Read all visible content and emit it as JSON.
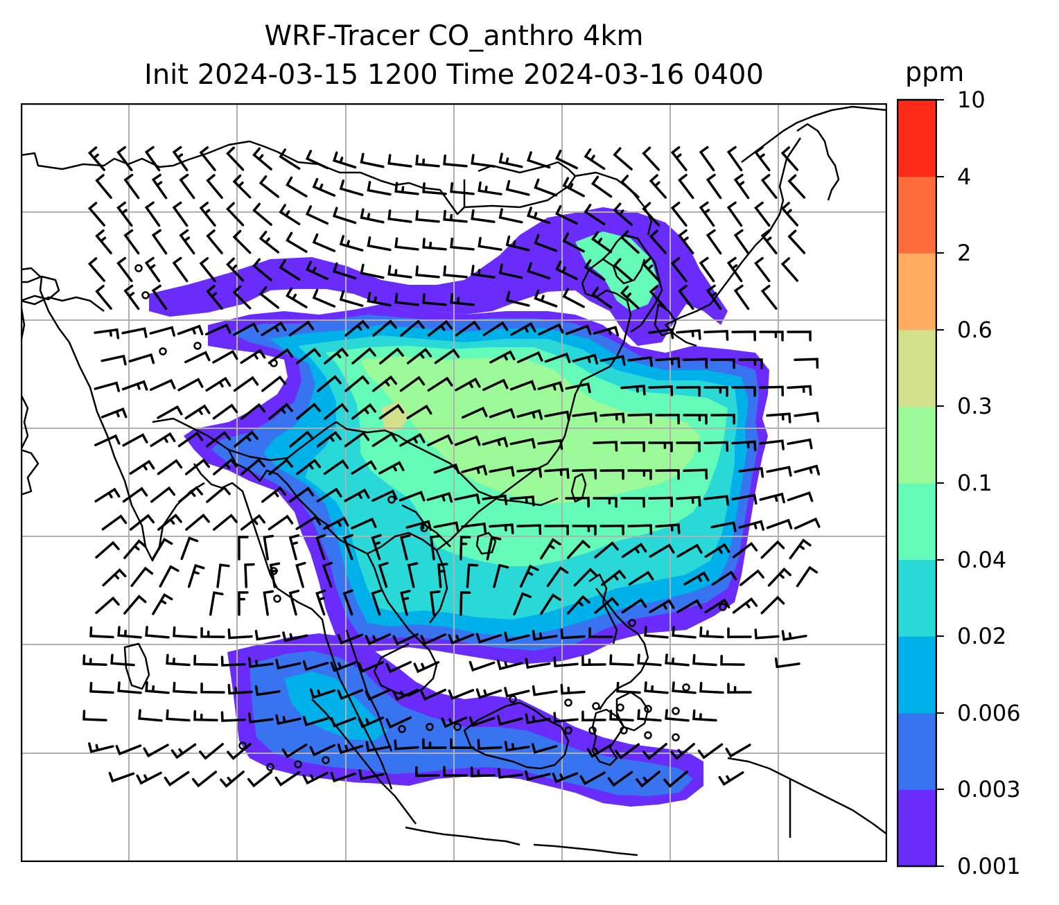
{
  "title": {
    "line1": "WRF-Tracer CO_anthro 4km",
    "line2": "Init 2024-03-15 1200 Time 2024-03-16 0400"
  },
  "colorbar": {
    "unit": "ppm",
    "ticks": [
      "0.001",
      "0.003",
      "0.006",
      "0.02",
      "0.04",
      "0.1",
      "0.3",
      "0.6",
      "2",
      "4",
      "10"
    ],
    "colors": [
      "#6a2cfa",
      "#3873f0",
      "#00b0e8",
      "#2ad8d8",
      "#64fab8",
      "#9cfa98",
      "#d2e08c",
      "#ffac60",
      "#ff6c3c",
      "#ff2a18"
    ]
  },
  "map": {
    "gridlines": true,
    "gridline_color": "#b0b0b0",
    "coastline_color": "#000000",
    "wind_barbs": true,
    "calm_circles": true
  }
}
